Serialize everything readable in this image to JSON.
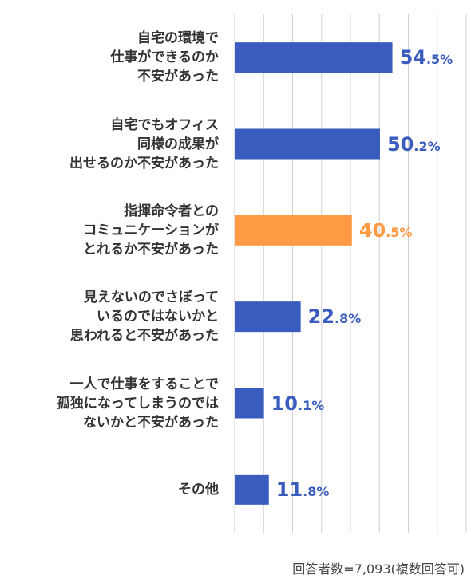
{
  "chart_data": {
    "type": "bar",
    "orientation": "horizontal",
    "categories": [
      "自宅の環境で\n仕事ができるのか\n不安があった",
      "自宅でもオフィス\n同様の成果が\n出せるのか不安があった",
      "指揮命令者との\nコミュニケーションが\nとれるか不安があった",
      "見えないのでさぼって\nいるのではないかと\n思われると不安があった",
      "一人で仕事をすることで\n孤独になってしまうのでは\nないかと不安があった",
      "その他"
    ],
    "values": [
      54.5,
      50.2,
      40.5,
      22.8,
      10.1,
      11.8
    ],
    "value_labels": [
      {
        "int": "54",
        "dec": ".5%"
      },
      {
        "int": "50",
        "dec": ".2%"
      },
      {
        "int": "40",
        "dec": ".5%"
      },
      {
        "int": "22",
        "dec": ".8%"
      },
      {
        "int": "10",
        "dec": ".1%"
      },
      {
        "int": "11",
        "dec": ".8%"
      }
    ],
    "highlight_index": 2,
    "colors": {
      "default": "#3a5cbf",
      "highlight": "#ff9a44",
      "grid": "#d0d0d0"
    },
    "xlim": [
      0,
      80
    ],
    "grid": true,
    "grid_step": 10
  },
  "footnote": "回答者数=7,093(複数回答可)"
}
